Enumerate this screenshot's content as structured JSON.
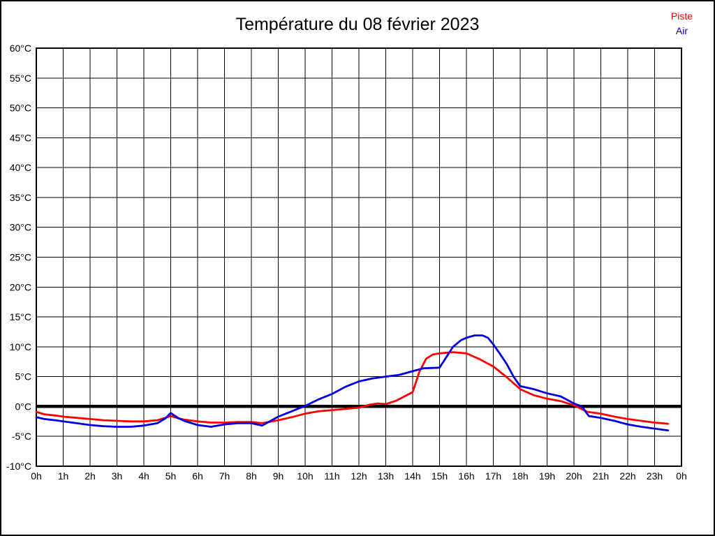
{
  "title": "Température du 08 février 2023",
  "chart_data": {
    "type": "line",
    "title": "Température du 08 février 2023",
    "xlabel": "",
    "ylabel": "",
    "xlim": [
      0,
      24
    ],
    "ylim": [
      -10,
      60
    ],
    "grid": true,
    "zero_line_at": 0,
    "legend_position": "top-right",
    "y_ticks": [
      {
        "v": 60,
        "label": "60°C"
      },
      {
        "v": 55,
        "label": "55°C"
      },
      {
        "v": 50,
        "label": "50°C"
      },
      {
        "v": 45,
        "label": "45°C"
      },
      {
        "v": 40,
        "label": "40°C"
      },
      {
        "v": 35,
        "label": "35°C"
      },
      {
        "v": 30,
        "label": "30°C"
      },
      {
        "v": 25,
        "label": "25°C"
      },
      {
        "v": 20,
        "label": "20°C"
      },
      {
        "v": 15,
        "label": "15°C"
      },
      {
        "v": 10,
        "label": "10°C"
      },
      {
        "v": 5,
        "label": "5°C"
      },
      {
        "v": 0,
        "label": "0°C"
      },
      {
        "v": -5,
        "label": "-5°C"
      },
      {
        "v": -10,
        "label": "-10°C"
      }
    ],
    "x_tick_labels": [
      "0h",
      "1h",
      "2h",
      "3h",
      "4h",
      "5h",
      "6h",
      "7h",
      "8h",
      "9h",
      "10h",
      "11h",
      "12h",
      "13h",
      "14h",
      "15h",
      "16h",
      "17h",
      "18h",
      "19h",
      "20h",
      "21h",
      "22h",
      "23h",
      "0h"
    ],
    "series": [
      {
        "name": "Piste",
        "color": "#ff0000",
        "points": [
          [
            0,
            -0.9
          ],
          [
            0.3,
            -1.3
          ],
          [
            0.7,
            -1.5
          ],
          [
            1,
            -1.7
          ],
          [
            1.5,
            -1.9
          ],
          [
            2,
            -2.1
          ],
          [
            2.5,
            -2.3
          ],
          [
            3,
            -2.4
          ],
          [
            3.5,
            -2.5
          ],
          [
            4,
            -2.5
          ],
          [
            4.5,
            -2.3
          ],
          [
            4.8,
            -1.9
          ],
          [
            5,
            -1.6
          ],
          [
            5.3,
            -2.0
          ],
          [
            5.5,
            -2.2
          ],
          [
            6,
            -2.5
          ],
          [
            6.5,
            -2.7
          ],
          [
            7,
            -2.7
          ],
          [
            7.5,
            -2.6
          ],
          [
            8,
            -2.6
          ],
          [
            8.4,
            -2.8
          ],
          [
            9,
            -2.3
          ],
          [
            9.5,
            -1.8
          ],
          [
            10,
            -1.2
          ],
          [
            10.5,
            -0.8
          ],
          [
            11,
            -0.6
          ],
          [
            11.5,
            -0.4
          ],
          [
            12,
            -0.2
          ],
          [
            12.4,
            0.3
          ],
          [
            12.7,
            0.5
          ],
          [
            13,
            0.4
          ],
          [
            13.4,
            1.0
          ],
          [
            13.7,
            1.7
          ],
          [
            14,
            2.4
          ],
          [
            14.25,
            5.8
          ],
          [
            14.5,
            8.0
          ],
          [
            14.75,
            8.7
          ],
          [
            15,
            8.9
          ],
          [
            15.5,
            9.1
          ],
          [
            16,
            8.9
          ],
          [
            16.5,
            7.9
          ],
          [
            17,
            6.7
          ],
          [
            17.5,
            4.9
          ],
          [
            18,
            2.9
          ],
          [
            18.5,
            1.9
          ],
          [
            19,
            1.3
          ],
          [
            19.5,
            0.9
          ],
          [
            20,
            0.2
          ],
          [
            20.5,
            -0.9
          ],
          [
            21,
            -1.2
          ],
          [
            21.5,
            -1.7
          ],
          [
            22,
            -2.1
          ],
          [
            22.5,
            -2.4
          ],
          [
            23,
            -2.7
          ],
          [
            23.5,
            -2.9
          ]
        ]
      },
      {
        "name": "Air",
        "color": "#0000dd",
        "points": [
          [
            0,
            -1.8
          ],
          [
            0.3,
            -2.1
          ],
          [
            0.7,
            -2.3
          ],
          [
            1,
            -2.5
          ],
          [
            1.5,
            -2.8
          ],
          [
            2,
            -3.1
          ],
          [
            2.5,
            -3.3
          ],
          [
            3,
            -3.4
          ],
          [
            3.5,
            -3.4
          ],
          [
            4,
            -3.2
          ],
          [
            4.5,
            -2.8
          ],
          [
            4.8,
            -2.0
          ],
          [
            5,
            -1.1
          ],
          [
            5.3,
            -2.0
          ],
          [
            5.5,
            -2.4
          ],
          [
            6,
            -3.1
          ],
          [
            6.5,
            -3.4
          ],
          [
            7,
            -3.0
          ],
          [
            7.5,
            -2.8
          ],
          [
            8,
            -2.8
          ],
          [
            8.4,
            -3.2
          ],
          [
            9,
            -1.7
          ],
          [
            9.5,
            -0.8
          ],
          [
            10,
            0.1
          ],
          [
            10.5,
            1.2
          ],
          [
            11,
            2.1
          ],
          [
            11.5,
            3.3
          ],
          [
            12,
            4.2
          ],
          [
            12.5,
            4.7
          ],
          [
            13,
            5.0
          ],
          [
            13.5,
            5.3
          ],
          [
            14,
            5.9
          ],
          [
            14.4,
            6.4
          ],
          [
            15,
            6.5
          ],
          [
            15.5,
            10.0
          ],
          [
            15.8,
            11.1
          ],
          [
            16,
            11.5
          ],
          [
            16.3,
            11.9
          ],
          [
            16.6,
            11.9
          ],
          [
            16.8,
            11.5
          ],
          [
            17,
            10.4
          ],
          [
            17.25,
            8.8
          ],
          [
            17.5,
            7.1
          ],
          [
            17.75,
            5.0
          ],
          [
            18,
            3.4
          ],
          [
            18.5,
            2.9
          ],
          [
            19,
            2.2
          ],
          [
            19.5,
            1.7
          ],
          [
            20,
            0.5
          ],
          [
            20.3,
            0.0
          ],
          [
            20.55,
            -1.6
          ],
          [
            21,
            -1.9
          ],
          [
            21.5,
            -2.4
          ],
          [
            22,
            -3.0
          ],
          [
            22.5,
            -3.4
          ],
          [
            23,
            -3.7
          ],
          [
            23.5,
            -4.0
          ]
        ]
      }
    ]
  }
}
